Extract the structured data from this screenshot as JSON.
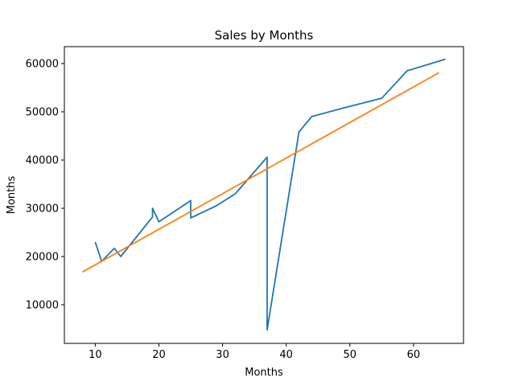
{
  "chart_data": {
    "type": "line",
    "title": "Sales by Months",
    "xlabel": "Months",
    "ylabel": "Months",
    "xlim": [
      5.15,
      67.85
    ],
    "ylim": [
      2000,
      63500
    ],
    "xticks": [
      10,
      20,
      30,
      40,
      50,
      60
    ],
    "yticks": [
      10000,
      20000,
      30000,
      40000,
      50000,
      60000
    ],
    "grid": false,
    "series": [
      {
        "color": "#1f77b4",
        "x": [
          10,
          11,
          13,
          14,
          19,
          19,
          20,
          25,
          25,
          29,
          32,
          37,
          37,
          42,
          44,
          49,
          55,
          59,
          65
        ],
        "y": [
          23000,
          19000,
          21700,
          20000,
          28200,
          30000,
          27200,
          31600,
          28000,
          30500,
          33000,
          40600,
          4800,
          45800,
          49000,
          50800,
          52800,
          58500,
          60900
        ]
      },
      {
        "color": "#ff7f0e",
        "x": [
          8,
          64
        ],
        "y": [
          16800,
          58100
        ]
      }
    ]
  }
}
